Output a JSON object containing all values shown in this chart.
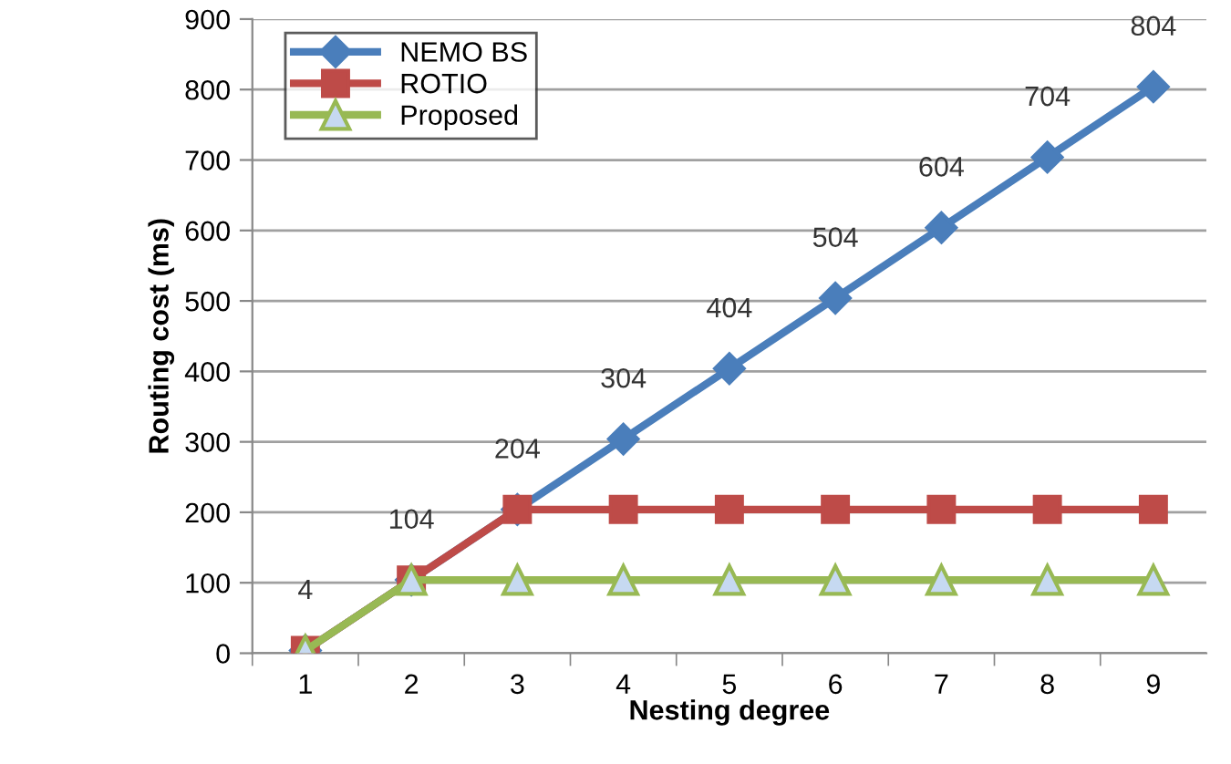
{
  "chart_data": {
    "type": "line",
    "xlabel": "Nesting degree",
    "ylabel": "Routing cost (ms)",
    "categories": [
      "1",
      "2",
      "3",
      "4",
      "5",
      "6",
      "7",
      "8",
      "9"
    ],
    "series": [
      {
        "name": "NEMO BS",
        "color": "#4a7ebb",
        "marker": "diamond",
        "values": [
          4,
          104,
          204,
          304,
          404,
          504,
          604,
          704,
          804
        ],
        "value_labels": [
          "4",
          "104",
          "204",
          "304",
          "404",
          "504",
          "604",
          "704",
          "804"
        ]
      },
      {
        "name": "ROTIO",
        "color": "#be4b48",
        "marker": "square",
        "values": [
          4,
          104,
          204,
          204,
          204,
          204,
          204,
          204,
          204
        ]
      },
      {
        "name": "Proposed",
        "color": "#98b954",
        "marker": "triangle",
        "values": [
          4,
          104,
          104,
          104,
          104,
          104,
          104,
          104,
          104
        ]
      }
    ],
    "ylim": [
      0,
      900
    ],
    "yticks": [
      0,
      100,
      200,
      300,
      400,
      500,
      600,
      700,
      800,
      900
    ],
    "grid": "y",
    "legend": "top left"
  }
}
